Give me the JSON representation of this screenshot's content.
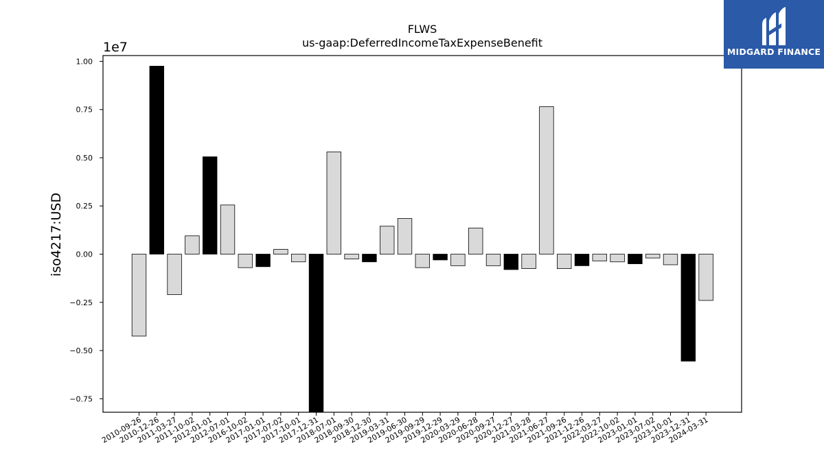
{
  "logo": {
    "text": "MIDGARD FINANCE",
    "icon": "midgard-logo-icon",
    "background": "#2a5aa8"
  },
  "chart_data": {
    "type": "bar",
    "title": "FLWS",
    "subtitle": "us-gaap:DeferredIncomeTaxExpenseBenefit",
    "ylabel": "iso4217:USD",
    "xlabel": "",
    "offset_label": "1e7",
    "ylim": [
      -0.82,
      1.03
    ],
    "yticks": [
      "1.00",
      "0.75",
      "0.50",
      "0.25",
      "0.00",
      "−0.25",
      "−0.50",
      "−0.75"
    ],
    "ytick_values": [
      1.0,
      0.75,
      0.5,
      0.25,
      0.0,
      -0.25,
      -0.5,
      -0.75
    ],
    "categories": [
      "2010-09-26",
      "2010-12-26",
      "2011-03-27",
      "2011-10-02",
      "2012-01-01",
      "2012-07-01",
      "2016-10-02",
      "2017-01-01",
      "2017-07-02",
      "2017-10-01",
      "2017-12-31",
      "2018-07-01",
      "2018-09-30",
      "2018-12-30",
      "2019-03-31",
      "2019-06-30",
      "2019-09-29",
      "2019-12-29",
      "2020-03-29",
      "2020-06-28",
      "2020-09-27",
      "2020-12-27",
      "2021-03-28",
      "2021-06-27",
      "2021-09-26",
      "2021-12-26",
      "2022-03-27",
      "2022-10-02",
      "2023-01-01",
      "2023-07-02",
      "2023-10-01",
      "2023-12-31",
      "2024-03-31"
    ],
    "values": [
      -0.425,
      0.975,
      -0.21,
      0.095,
      0.505,
      0.255,
      -0.07,
      -0.065,
      0.025,
      -0.04,
      -0.82,
      0.53,
      -0.025,
      -0.04,
      0.145,
      0.185,
      -0.07,
      -0.03,
      -0.06,
      0.135,
      -0.06,
      -0.08,
      -0.075,
      0.765,
      -0.075,
      -0.06,
      -0.035,
      -0.04,
      -0.05,
      -0.02,
      -0.055,
      -0.555,
      -0.24
    ],
    "highlighted": [
      false,
      true,
      false,
      false,
      true,
      false,
      false,
      true,
      false,
      false,
      true,
      false,
      false,
      true,
      false,
      false,
      false,
      true,
      false,
      false,
      false,
      true,
      false,
      false,
      false,
      true,
      false,
      false,
      true,
      false,
      false,
      true,
      false
    ],
    "colors": {
      "normal": "#d9d9d9",
      "highlight": "#000000",
      "edge": "#000000"
    },
    "grid": false,
    "legend": "none"
  }
}
